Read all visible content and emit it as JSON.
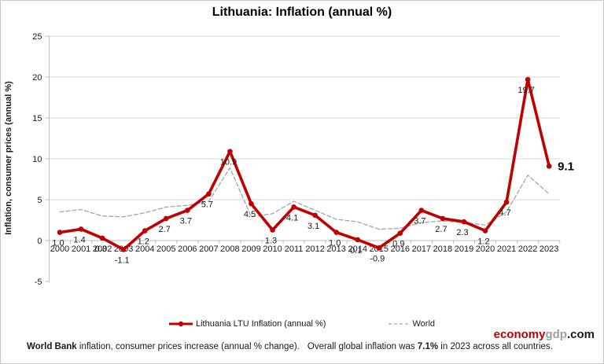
{
  "title": "Lithuania: Inflation (annual %)",
  "chart_data": {
    "type": "line",
    "title": "Lithuania: Inflation (annual %)",
    "xlabel": "",
    "ylabel": "Inflation, consumer prices (annual %)",
    "ylim": [
      -5,
      25
    ],
    "ytick_step": 5,
    "grid": true,
    "legend_position": "bottom",
    "categories": [
      "2000",
      "2001",
      "2002",
      "2003",
      "2004",
      "2005",
      "2006",
      "2007",
      "2008",
      "2009",
      "2010",
      "2011",
      "2012",
      "2013",
      "2014",
      "2015",
      "2016",
      "2017",
      "2018",
      "2019",
      "2020",
      "2021",
      "2022",
      "2023"
    ],
    "series": [
      {
        "name": "Lithuania LTU Inflation (annual %)",
        "color": "#c00000",
        "line_style": "solid",
        "marker": "circle",
        "data_labels": true,
        "values": [
          1.0,
          1.4,
          0.3,
          -1.1,
          1.2,
          2.7,
          3.7,
          5.7,
          10.9,
          4.5,
          1.3,
          4.1,
          3.1,
          1.0,
          0.1,
          -0.9,
          0.9,
          3.7,
          2.7,
          2.3,
          1.2,
          4.7,
          19.7,
          9.1
        ]
      },
      {
        "name": "World",
        "color": "#a6a6a6",
        "line_style": "dashed",
        "marker": "none",
        "data_labels": false,
        "values": [
          3.5,
          3.8,
          3.0,
          2.9,
          3.4,
          4.1,
          4.3,
          4.8,
          8.9,
          2.9,
          3.3,
          4.8,
          3.7,
          2.6,
          2.3,
          1.4,
          1.5,
          2.2,
          2.4,
          2.2,
          1.9,
          3.5,
          8.0,
          5.7
        ]
      }
    ],
    "end_label": "9.1"
  },
  "branding": {
    "part_red": "economy",
    "part_gray": "gdp",
    "part_dark": ".com"
  },
  "footer": {
    "source_bold": "World Bank",
    "source_text": "inflation, consumer prices increase (annual % change).",
    "note_text": "Overall global inflation was",
    "note_bold": "7.1%",
    "note_tail": "in 2023 across all countries."
  },
  "colors": {
    "series_primary": "#c00000",
    "series_secondary": "#a6a6a6",
    "gridline": "#d9d9d9",
    "axis": "#bfbfbf"
  }
}
